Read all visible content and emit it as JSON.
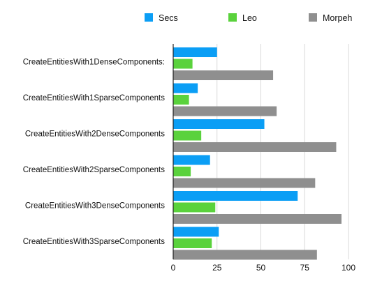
{
  "chart_data": {
    "type": "bar",
    "orientation": "horizontal",
    "title": "",
    "xlabel": "",
    "ylabel": "",
    "categories": [
      "CreateEntitiesWith1DenseComponents:",
      "CreateEntitiesWith1SparseComponents",
      "CreateEntitiesWith2DenseComponents",
      "CreateEntitiesWith2SparseComponents",
      "CreateEntitiesWith3DenseComponents",
      "CreateEntitiesWith3SparseComponents"
    ],
    "series": [
      {
        "name": "Secs",
        "color": "#0b9ef5",
        "values": [
          25,
          14,
          52,
          21,
          71,
          26
        ]
      },
      {
        "name": "Leo",
        "color": "#5ad23c",
        "values": [
          11,
          9,
          16,
          10,
          24,
          22
        ]
      },
      {
        "name": "Morpeh",
        "color": "#8f8f8f",
        "values": [
          57,
          59,
          93,
          81,
          96,
          82
        ]
      }
    ],
    "xlim": [
      0,
      100
    ],
    "xticks": [
      "0",
      "25",
      "50",
      "75",
      "100"
    ],
    "xtick_values": [
      0,
      25,
      50,
      75,
      100
    ],
    "grid": true,
    "legend_position": "top"
  }
}
